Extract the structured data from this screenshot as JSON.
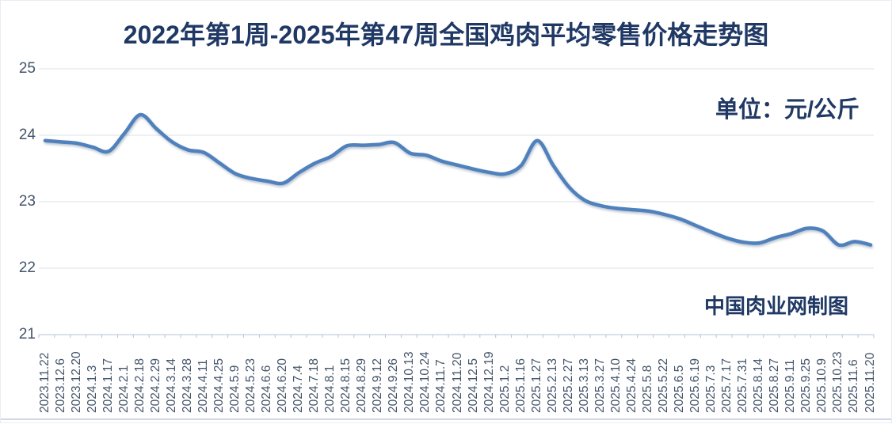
{
  "chart_data": {
    "type": "line",
    "title": "2022年第1周-2025年第47周全国鸡肉平均零售价格走势图",
    "unit_label": "单位：元/公斤",
    "credit_label": "中国肉业网制图",
    "ylim": [
      21,
      25
    ],
    "yticks": [
      25,
      24,
      23,
      22,
      21
    ],
    "grid": "horizontal",
    "legend": "none",
    "x_labels_vertical": true,
    "categories": [
      "2023.11.22",
      "2023.12.6",
      "2023.12.20",
      "2024.1.3",
      "2024.1.17",
      "2024.2.1",
      "2024.2.18",
      "2024.2.29",
      "2024.3.14",
      "2024.3.28",
      "2024.4.11",
      "2024.4.25",
      "2024.5.9",
      "2024.5.23",
      "2024.6.6",
      "2024.6.20",
      "2024.7.4",
      "2024.7.18",
      "2024.8.1",
      "2024.8.15",
      "2024.8.29",
      "2024.9.12",
      "2024.9.26",
      "2024.10.13",
      "2024.10.24",
      "2024.11.7",
      "2024.11.20",
      "2024.12.5",
      "2024.12.19",
      "2025.1.2",
      "2025.1.16",
      "2025.1.27",
      "2025.2.13",
      "2025.2.27",
      "2025.3.13",
      "2025.3.27",
      "2025.4.10",
      "2025.4.24",
      "2025.5.8",
      "2025.5.22",
      "2025.6.5",
      "2025.6.19",
      "2025.7.3",
      "2025.7.17",
      "2025.7.31",
      "2025.8.14",
      "2025.8.27",
      "2025.9.11",
      "2025.9.25",
      "2025.10.9",
      "2025.10.23",
      "2025.11.6",
      "2025.11.20"
    ],
    "values": [
      23.92,
      23.9,
      23.88,
      23.82,
      23.76,
      24.03,
      24.31,
      24.1,
      23.9,
      23.78,
      23.74,
      23.58,
      23.42,
      23.35,
      23.31,
      23.28,
      23.44,
      23.58,
      23.68,
      23.84,
      23.85,
      23.86,
      23.89,
      23.73,
      23.7,
      23.61,
      23.55,
      23.49,
      23.44,
      23.42,
      23.55,
      23.92,
      23.55,
      23.22,
      23.02,
      22.94,
      22.9,
      22.88,
      22.86,
      22.81,
      22.74,
      22.64,
      22.54,
      22.45,
      22.39,
      22.38,
      22.46,
      22.52,
      22.6,
      22.56,
      22.35,
      22.4,
      22.35
    ]
  },
  "colors": {
    "line": "#4F81BD",
    "title_text": "#1F3864",
    "axis_text": "#44546A",
    "gridline": "#DCE1E9",
    "axis_line": "#B6C2D8",
    "tick": "#B6C2D8"
  }
}
